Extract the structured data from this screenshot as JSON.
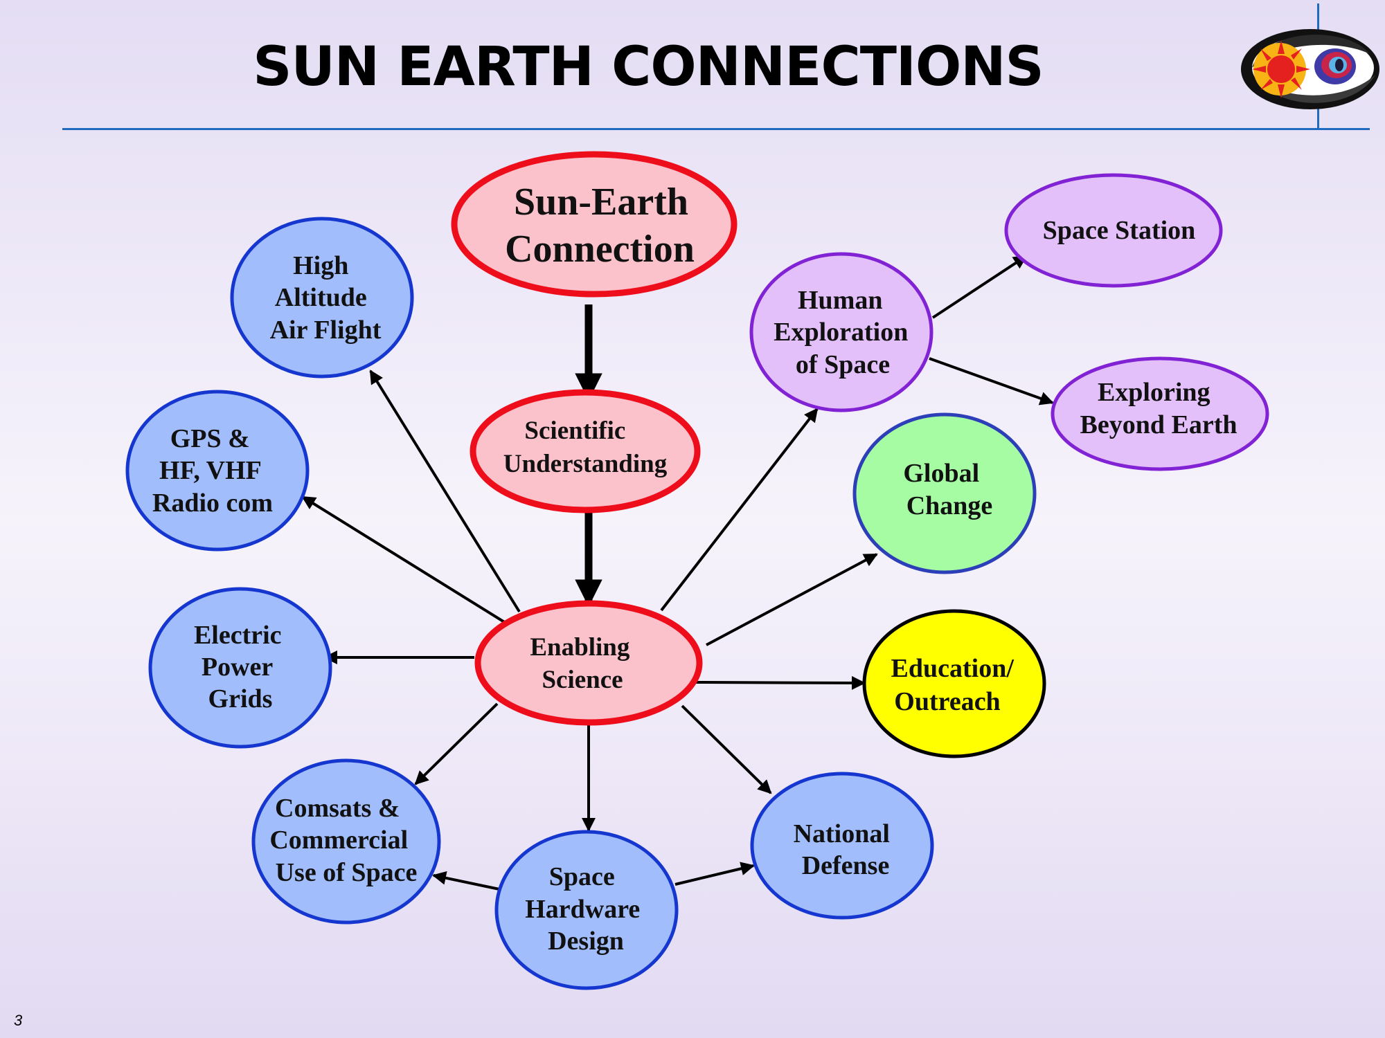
{
  "title": "SUN EARTH CONNECTIONS",
  "page_number": "3",
  "logo": {
    "name": "sun-earth-logo"
  },
  "colors": {
    "title_rule": "#1f6bbf",
    "red_fill": "#fcc2cc",
    "red_stroke": "#ee0d1a",
    "blue_fill": "#a2bdfb",
    "blue_stroke": "#1537cf",
    "purple_fill": "#e3c0fa",
    "purple_stroke": "#8222d5",
    "green_fill": "#a6fca3",
    "green_stroke": "#2c3fb8",
    "yellow_fill": "#ffff00",
    "yellow_stroke": "#000000"
  },
  "nodes": {
    "sun_earth_connection": [
      "Sun-Earth",
      "Connection"
    ],
    "scientific_understanding": [
      "Scientific",
      "Understanding"
    ],
    "enabling_science": [
      "Enabling",
      "Science"
    ],
    "high_altitude": [
      "High",
      "Altitude",
      "Air Flight"
    ],
    "gps_radio": [
      "GPS &",
      "HF, VHF",
      "Radio com"
    ],
    "electric_power": [
      "Electric",
      "Power",
      "Grids"
    ],
    "comsats": [
      "Comsats &",
      "Commercial",
      "Use of Space"
    ],
    "space_hardware": [
      "Space",
      "Hardware",
      "Design"
    ],
    "national_defense": [
      "National",
      "Defense"
    ],
    "education": [
      "Education/",
      "Outreach"
    ],
    "global_change": [
      "Global",
      "Change"
    ],
    "human_exploration": [
      "Human",
      "Exploration",
      "of Space"
    ],
    "space_station": [
      "Space Station"
    ],
    "exploring_beyond": [
      "Exploring",
      "Beyond Earth"
    ]
  }
}
